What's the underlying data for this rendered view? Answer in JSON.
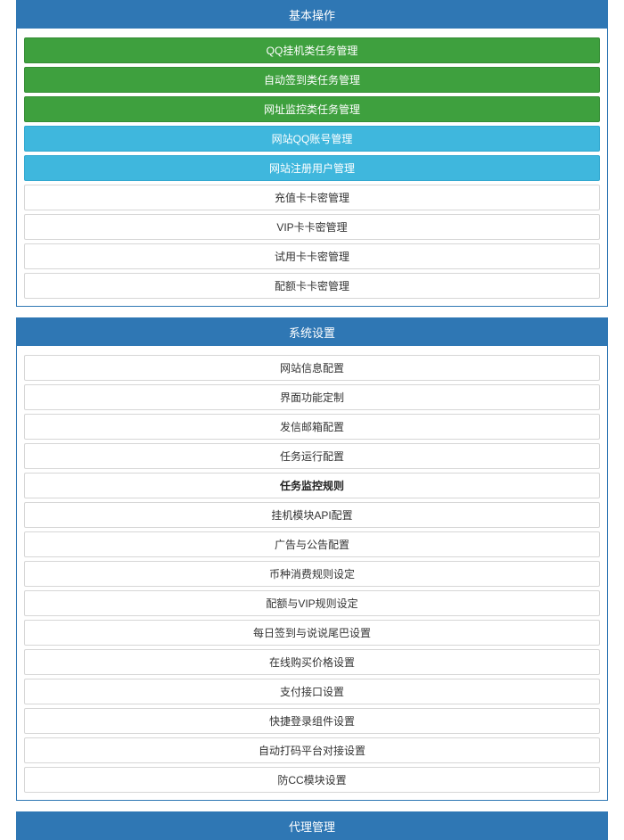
{
  "colors": {
    "panel_header_bg": "#2f77b4",
    "panel_header_text": "#ffffff",
    "item_default_bg": "#ffffff",
    "item_default_border": "#d6d6d6",
    "item_default_text": "#333333",
    "item_green_bg": "#3ea03e",
    "item_green_border": "#358c35",
    "item_blue_bg": "#3fb7dd",
    "item_blue_border": "#32a8cf",
    "bold_text": "#222222"
  },
  "panels": [
    {
      "id": "basic",
      "title": "基本操作",
      "items": [
        {
          "label": "QQ挂机类任务管理",
          "style": "green"
        },
        {
          "label": "自动签到类任务管理",
          "style": "green"
        },
        {
          "label": "网址监控类任务管理",
          "style": "green"
        },
        {
          "label": "网站QQ账号管理",
          "style": "blue"
        },
        {
          "label": "网站注册用户管理",
          "style": "blue"
        },
        {
          "label": "充值卡卡密管理",
          "style": "default"
        },
        {
          "label": "VIP卡卡密管理",
          "style": "default"
        },
        {
          "label": "试用卡卡密管理",
          "style": "default"
        },
        {
          "label": "配额卡卡密管理",
          "style": "default"
        }
      ]
    },
    {
      "id": "system",
      "title": "系统设置",
      "items": [
        {
          "label": "网站信息配置",
          "style": "default"
        },
        {
          "label": "界面功能定制",
          "style": "default"
        },
        {
          "label": "发信邮箱配置",
          "style": "default"
        },
        {
          "label": "任务运行配置",
          "style": "default"
        },
        {
          "label": "任务监控规则",
          "style": "bold"
        },
        {
          "label": "挂机模块API配置",
          "style": "default"
        },
        {
          "label": "广告与公告配置",
          "style": "default"
        },
        {
          "label": "币种消费规则设定",
          "style": "default"
        },
        {
          "label": "配额与VIP规则设定",
          "style": "default"
        },
        {
          "label": "每日签到与说说尾巴设置",
          "style": "default"
        },
        {
          "label": "在线购买价格设置",
          "style": "default"
        },
        {
          "label": "支付接口设置",
          "style": "default"
        },
        {
          "label": "快捷登录组件设置",
          "style": "default"
        },
        {
          "label": "自动打码平台对接设置",
          "style": "default"
        },
        {
          "label": "防CC模块设置",
          "style": "default"
        }
      ]
    },
    {
      "id": "agent",
      "title": "代理管理",
      "items": []
    }
  ]
}
